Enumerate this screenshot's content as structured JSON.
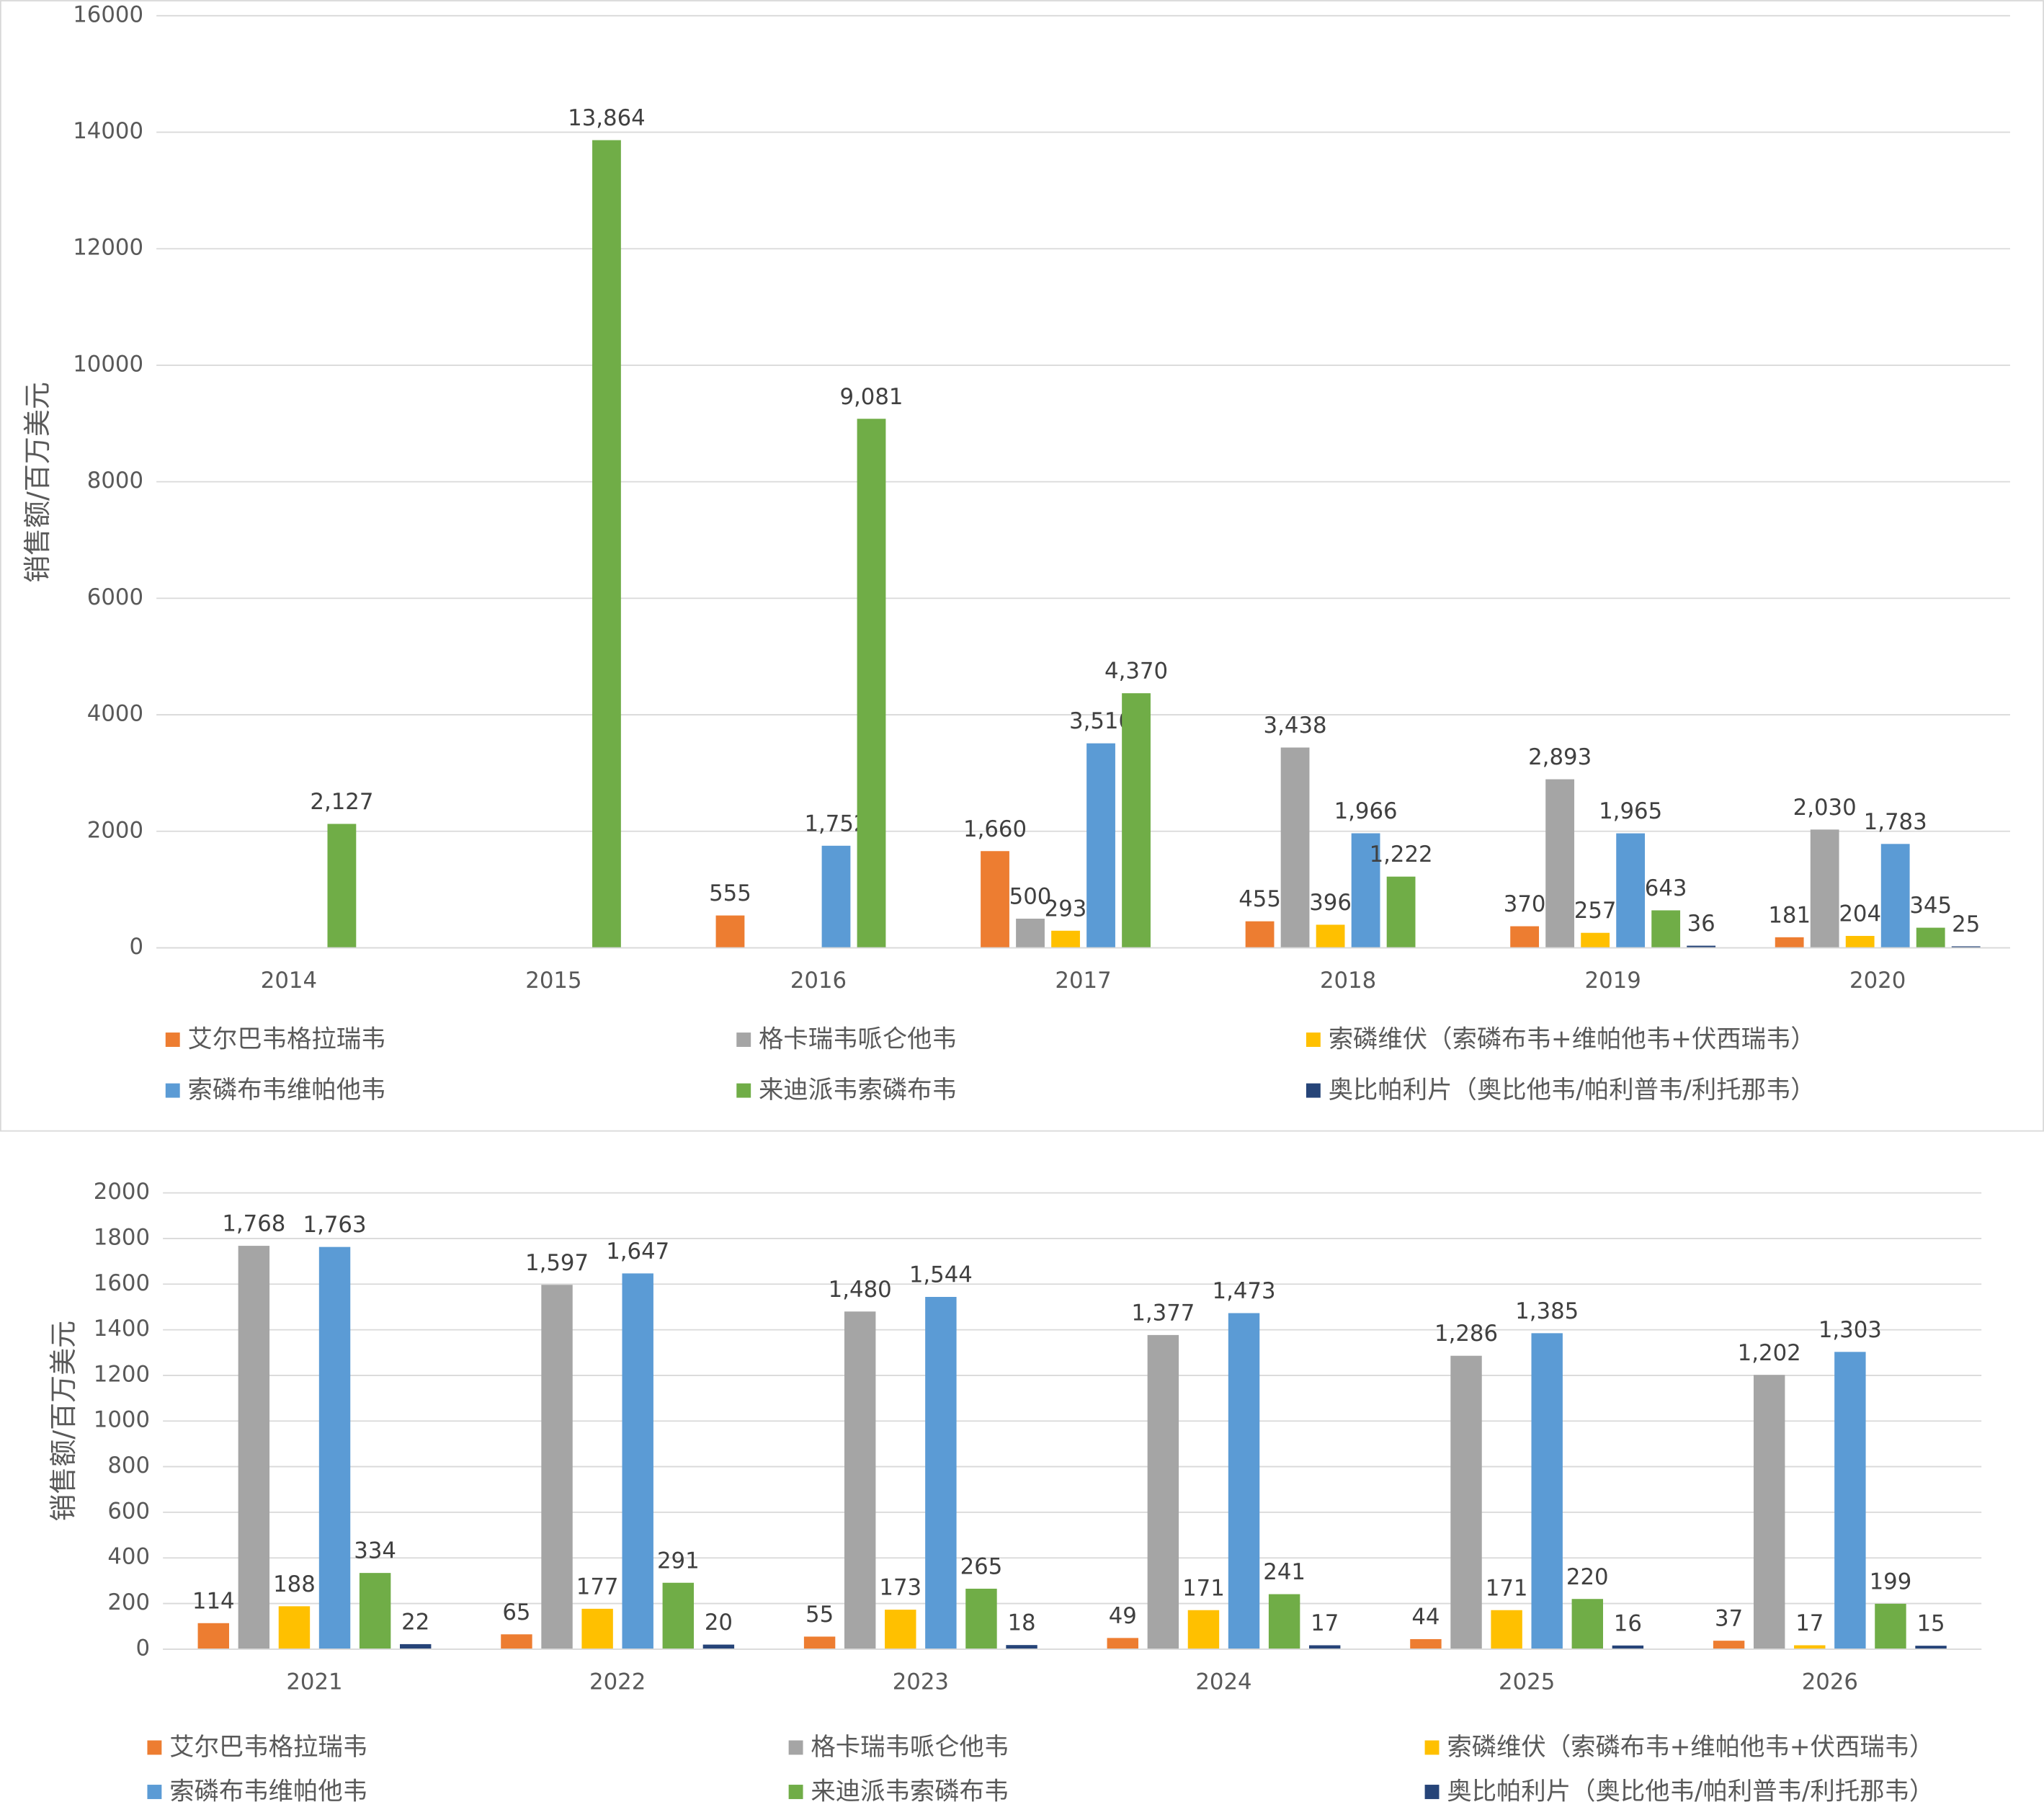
{
  "chart_data": [
    {
      "type": "bar",
      "y_label": "销售额/百万美元",
      "categories": [
        "2014",
        "2015",
        "2016",
        "2017",
        "2018",
        "2019",
        "2020"
      ],
      "ylim": [
        0,
        16000
      ],
      "yticks": [
        0,
        2000,
        4000,
        6000,
        8000,
        10000,
        12000,
        14000,
        16000
      ],
      "grid": true,
      "series": [
        {
          "name": "艾尔巴韦格拉瑞韦",
          "color": "#ed7d31",
          "values": [
            null,
            null,
            555,
            1660,
            455,
            370,
            181
          ],
          "value_labels": [
            null,
            null,
            "555",
            "1,660",
            "455",
            "370",
            "181"
          ]
        },
        {
          "name": "格卡瑞韦哌仑他韦",
          "color": "#a5a5a5",
          "values": [
            null,
            null,
            null,
            500,
            3438,
            2893,
            2030
          ],
          "value_labels": [
            null,
            null,
            null,
            "500",
            "3,438",
            "2,893",
            "2,030"
          ]
        },
        {
          "name": "索磷维伏（索磷布韦+维帕他韦+伏西瑞韦）",
          "color": "#ffc000",
          "values": [
            null,
            null,
            null,
            293,
            396,
            257,
            204
          ],
          "value_labels": [
            null,
            null,
            null,
            "293",
            "396",
            "257",
            "204"
          ]
        },
        {
          "name": "索磷布韦维帕他韦",
          "color": "#5b9bd5",
          "values": [
            null,
            null,
            1752,
            3510,
            1966,
            1965,
            1783
          ],
          "value_labels": [
            null,
            null,
            "1,752",
            "3,510",
            "1,966",
            "1,965",
            "1,783"
          ]
        },
        {
          "name": "来迪派韦索磷布韦",
          "color": "#70ad47",
          "values": [
            2127,
            13864,
            9081,
            4370,
            1222,
            643,
            345
          ],
          "value_labels": [
            "2,127",
            "13,864",
            "9,081",
            "4,370",
            "1,222",
            "643",
            "345"
          ]
        },
        {
          "name": "奥比帕利片（奥比他韦/帕利普韦/利托那韦）",
          "color": "#264478",
          "values": [
            null,
            null,
            null,
            null,
            null,
            36,
            25
          ],
          "value_labels": [
            null,
            null,
            null,
            null,
            null,
            "36",
            "25"
          ]
        }
      ]
    },
    {
      "type": "bar",
      "y_label": "销售额/百万美元",
      "categories": [
        "2021",
        "2022",
        "2023",
        "2024",
        "2025",
        "2026"
      ],
      "ylim": [
        0,
        2000
      ],
      "yticks": [
        0,
        200,
        400,
        600,
        800,
        1000,
        1200,
        1400,
        1600,
        1800,
        2000
      ],
      "grid": true,
      "series": [
        {
          "name": "艾尔巴韦格拉瑞韦",
          "color": "#ed7d31",
          "values": [
            114,
            65,
            55,
            49,
            44,
            37
          ]
        },
        {
          "name": "格卡瑞韦哌仑他韦",
          "color": "#a5a5a5",
          "values": [
            1768,
            1597,
            1480,
            1377,
            1286,
            1202
          ],
          "value_labels": [
            "1,768",
            "1,597",
            "1,480",
            "1,377",
            "1,286",
            "1,202"
          ]
        },
        {
          "name": "索磷维伏（索磷布韦+维帕他韦+伏西瑞韦）",
          "color": "#ffc000",
          "values": [
            188,
            177,
            173,
            171,
            171,
            17
          ]
        },
        {
          "name": "索磷布韦维帕他韦",
          "color": "#5b9bd5",
          "values": [
            1763,
            1647,
            1544,
            1473,
            1385,
            1303
          ],
          "value_labels": [
            "1,763",
            "1,647",
            "1,544",
            "1,473",
            "1,385",
            "1,303"
          ]
        },
        {
          "name": "来迪派韦索磷布韦",
          "color": "#70ad47",
          "values": [
            334,
            291,
            265,
            241,
            220,
            199
          ]
        },
        {
          "name": "奥比帕利片（奥比他韦/帕利普韦/利托那韦）",
          "color": "#264478",
          "values": [
            22,
            20,
            18,
            17,
            16,
            15
          ]
        }
      ]
    }
  ]
}
